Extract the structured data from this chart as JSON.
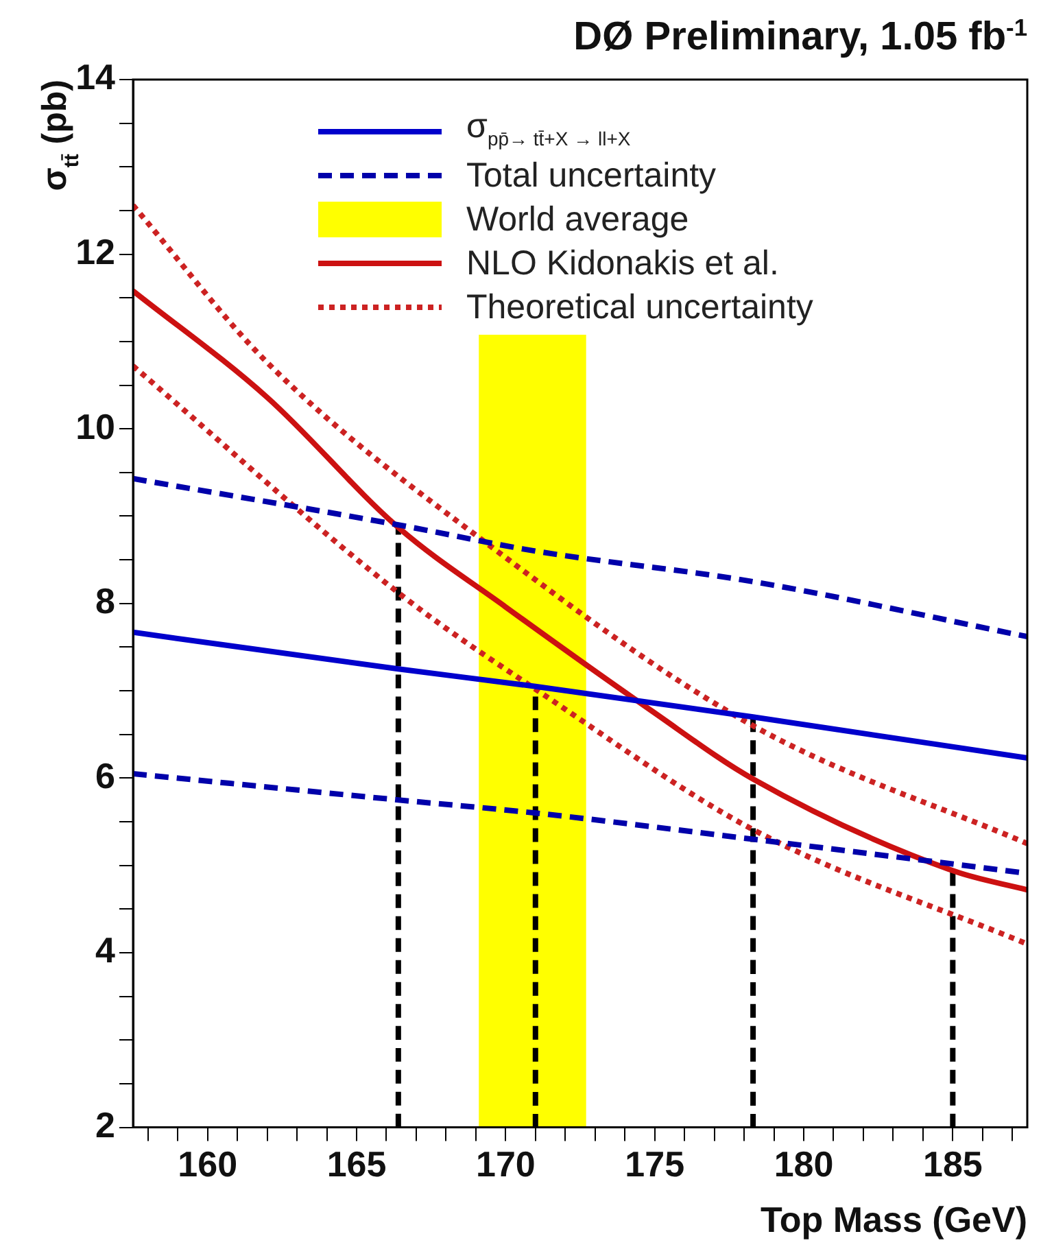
{
  "chart_data": {
    "type": "line",
    "title": "DØ Preliminary, 1.05 fb$^{-1}$",
    "xlabel": "Top Mass (GeV)",
    "ylabel": "σ$_{tt̄}$ (pb)",
    "xlim": [
      157.5,
      187.5
    ],
    "ylim": [
      2,
      14
    ],
    "xticks": [
      {
        "value": 158,
        "label": null
      },
      {
        "value": 159,
        "label": null
      },
      160,
      {
        "value": 161,
        "label": null
      },
      {
        "value": 162,
        "label": null
      },
      {
        "value": 163,
        "label": null
      },
      {
        "value": 164,
        "label": null
      },
      165,
      {
        "value": 166,
        "label": null
      },
      {
        "value": 167,
        "label": null
      },
      {
        "value": 168,
        "label": null
      },
      {
        "value": 169,
        "label": null
      },
      170,
      {
        "value": 171,
        "label": null
      },
      {
        "value": 172,
        "label": null
      },
      {
        "value": 173,
        "label": null
      },
      {
        "value": 174,
        "label": null
      },
      175,
      {
        "value": 176,
        "label": null
      },
      {
        "value": 177,
        "label": null
      },
      {
        "value": 178,
        "label": null
      },
      {
        "value": 179,
        "label": null
      },
      180,
      {
        "value": 181,
        "label": null
      },
      {
        "value": 182,
        "label": null
      },
      {
        "value": 183,
        "label": null
      },
      {
        "value": 184,
        "label": null
      },
      185,
      {
        "value": 186,
        "label": null
      },
      {
        "value": 187,
        "label": null
      }
    ],
    "yticks": [
      2,
      {
        "value": 2.5,
        "label": null
      },
      {
        "value": 3,
        "label": null
      },
      {
        "value": 3.5,
        "label": null
      },
      4,
      {
        "value": 4.5,
        "label": null
      },
      {
        "value": 5,
        "label": null
      },
      {
        "value": 5.5,
        "label": null
      },
      6,
      {
        "value": 6.5,
        "label": null
      },
      {
        "value": 7,
        "label": null
      },
      {
        "value": 7.5,
        "label": null
      },
      8,
      {
        "value": 8.5,
        "label": null
      },
      {
        "value": 9,
        "label": null
      },
      {
        "value": 9.5,
        "label": null
      },
      10,
      {
        "value": 10.5,
        "label": null
      },
      {
        "value": 11,
        "label": null
      },
      {
        "value": 11.5,
        "label": null
      },
      12,
      {
        "value": 12.5,
        "label": null
      },
      {
        "value": 13,
        "label": null
      },
      {
        "value": 13.5,
        "label": null
      },
      14
    ],
    "grid": false,
    "legend": "top",
    "series": [
      {
        "name": "σ$_{pp̄→ tt̄+X → ll+X}$",
        "color": "#0000cc",
        "line_style": "solid",
        "x": [
          157.5,
          166.4,
          171,
          178.3,
          187.5
        ],
        "values": [
          7.67,
          7.25,
          7.05,
          6.7,
          6.23
        ]
      },
      {
        "name": "Total uncertainty",
        "color": "#0000aa",
        "line_style": "dashed",
        "x": [
          157.5,
          166.4,
          171,
          178.3,
          187.5
        ],
        "values": [
          9.43,
          8.9,
          8.6,
          8.25,
          7.62
        ]
      },
      {
        "color": "#0000aa",
        "line_style": "dashed",
        "x": [
          157.5,
          166.4,
          171,
          178.3,
          187.5
        ],
        "values": [
          6.05,
          5.75,
          5.6,
          5.3,
          4.91
        ]
      },
      {
        "name": "NLO Kidonakis et al.",
        "color": "#cc1111",
        "line_style": "solid",
        "x": [
          157.5,
          162,
          166.4,
          170,
          174.9,
          178.3,
          185,
          187.5
        ],
        "values": [
          11.58,
          10.36,
          8.87,
          7.96,
          6.77,
          5.99,
          4.94,
          4.72
        ]
      },
      {
        "name": "Theoretical uncertainty",
        "color": "#cc2222",
        "line_style": "dotted",
        "x": [
          157.5,
          162,
          169.4,
          178.3,
          187.5
        ],
        "values": [
          12.56,
          10.76,
          8.68,
          6.6,
          5.25
        ]
      },
      {
        "color": "#cc2222",
        "line_style": "dotted",
        "x": [
          157.5,
          166.6,
          171.3,
          178.3,
          187.5
        ],
        "values": [
          10.72,
          8.07,
          6.95,
          5.41,
          4.1
        ]
      },
      {
        "color": "#000000",
        "line_style": "dashed",
        "x": [
          166.4,
          166.4
        ],
        "values": [
          2,
          8.9
        ]
      },
      {
        "color": "#000000",
        "line_style": "dashed",
        "x": [
          171,
          171
        ],
        "values": [
          2,
          7.05
        ]
      },
      {
        "color": "#000000",
        "line_style": "dashed",
        "x": [
          178.3,
          178.3
        ],
        "values": [
          2,
          6.7
        ]
      },
      {
        "color": "#000000",
        "line_style": "dashed",
        "x": [
          185,
          185
        ],
        "values": [
          2,
          4.97
        ]
      }
    ],
    "bands": [
      {
        "axis": "x",
        "from": 169.1,
        "to": 172.7,
        "label": "World average",
        "color": "#ffff00"
      }
    ]
  }
}
